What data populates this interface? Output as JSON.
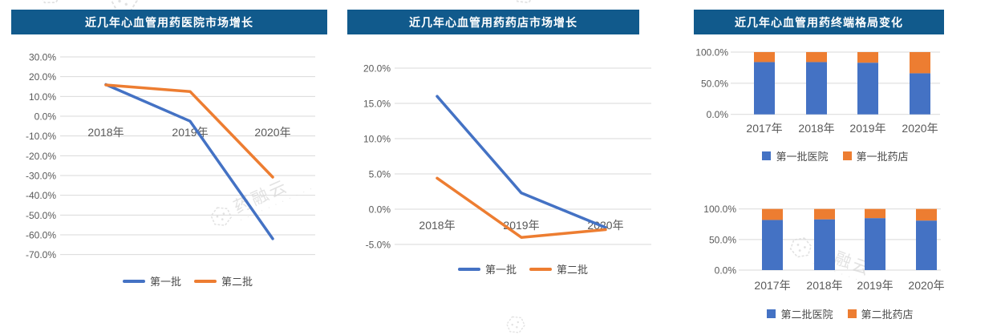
{
  "colors": {
    "banner": "#115A8C",
    "title_text": "#FFFFFF",
    "series_blue": "#4472C4",
    "series_orange": "#ED7D31",
    "grid": "#D9D9D9",
    "tick_text": "#595959",
    "watermark": "#C6C6C6"
  },
  "watermark": {
    "text": "药融云",
    "dots": "· · · · · · · · · · ·"
  },
  "chart_data": [
    {
      "type": "line",
      "title": "近几年心血管用药医院市场增长",
      "x": [
        "2018年",
        "2019年",
        "2020年"
      ],
      "series": [
        {
          "name": "第一批",
          "color": "#4472C4",
          "values": [
            16.0,
            -2.5,
            -62.0
          ]
        },
        {
          "name": "第二批",
          "color": "#ED7D31",
          "values": [
            15.8,
            12.5,
            -30.8
          ]
        }
      ],
      "ylim": [
        -70,
        30
      ],
      "ystep": 10,
      "tick_format": "percent_1dp",
      "grid": true,
      "legend_position": "bottom"
    },
    {
      "type": "line",
      "title": "近几年心血管用药药店市场增长",
      "x": [
        "2018年",
        "2019年",
        "2020年"
      ],
      "series": [
        {
          "name": "第一批",
          "color": "#4472C4",
          "values": [
            16.0,
            2.3,
            -2.6
          ]
        },
        {
          "name": "第二批",
          "color": "#ED7D31",
          "values": [
            4.4,
            -4.0,
            -2.9
          ]
        }
      ],
      "ylim": [
        -5,
        20
      ],
      "ystep": 5,
      "tick_format": "percent_1dp",
      "grid": true,
      "legend_position": "bottom"
    },
    {
      "type": "stacked-bar",
      "title": "近几年心血管用药终端格局变化",
      "x": [
        "2017年",
        "2018年",
        "2019年",
        "2020年"
      ],
      "series": [
        {
          "name": "第一批医院",
          "color": "#4472C4",
          "values": [
            84,
            84,
            83,
            66
          ]
        },
        {
          "name": "第一批药店",
          "color": "#ED7D31",
          "values": [
            16,
            16,
            17,
            34
          ]
        }
      ],
      "ylim": [
        0,
        100
      ],
      "ystep": 50,
      "tick_format": "percent_1dp",
      "grid": true,
      "legend_position": "bottom"
    },
    {
      "type": "stacked-bar",
      "title": "",
      "x": [
        "2017年",
        "2018年",
        "2019年",
        "2020年"
      ],
      "series": [
        {
          "name": "第二批医院",
          "color": "#4472C4",
          "values": [
            82,
            83,
            85,
            81
          ]
        },
        {
          "name": "第二批药店",
          "color": "#ED7D31",
          "values": [
            18,
            17,
            15,
            19
          ]
        }
      ],
      "ylim": [
        0,
        100
      ],
      "ystep": 50,
      "tick_format": "percent_1dp",
      "grid": true,
      "legend_position": "bottom"
    }
  ]
}
